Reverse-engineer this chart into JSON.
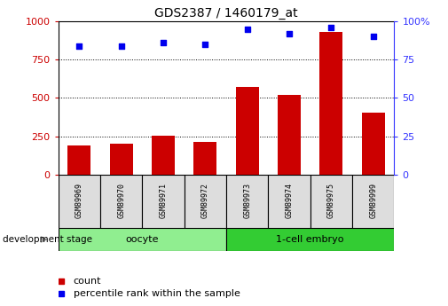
{
  "title": "GDS2387 / 1460179_at",
  "samples": [
    "GSM89969",
    "GSM89970",
    "GSM89971",
    "GSM89972",
    "GSM89973",
    "GSM89974",
    "GSM89975",
    "GSM89999"
  ],
  "counts": [
    190,
    200,
    255,
    215,
    570,
    520,
    930,
    405
  ],
  "percentile_ranks": [
    84,
    84,
    86,
    85,
    95,
    92,
    96,
    90
  ],
  "groups": [
    {
      "label": "oocyte",
      "indices": [
        0,
        1,
        2,
        3
      ],
      "color": "#90EE90"
    },
    {
      "label": "1-cell embryo",
      "indices": [
        4,
        5,
        6,
        7
      ],
      "color": "#33CC33"
    }
  ],
  "bar_color": "#CC0000",
  "dot_color": "#0000EE",
  "left_axis_color": "#CC0000",
  "right_axis_color": "#3333FF",
  "ylim_left": [
    0,
    1000
  ],
  "ylim_right": [
    0,
    100
  ],
  "yticks_left": [
    0,
    250,
    500,
    750,
    1000
  ],
  "yticks_right": [
    0,
    25,
    50,
    75,
    100
  ],
  "background_color": "#ffffff",
  "category_label": "development stage",
  "legend_count_label": "count",
  "legend_pct_label": "percentile rank within the sample",
  "sample_box_color": "#DDDDDD",
  "bar_width": 0.55
}
